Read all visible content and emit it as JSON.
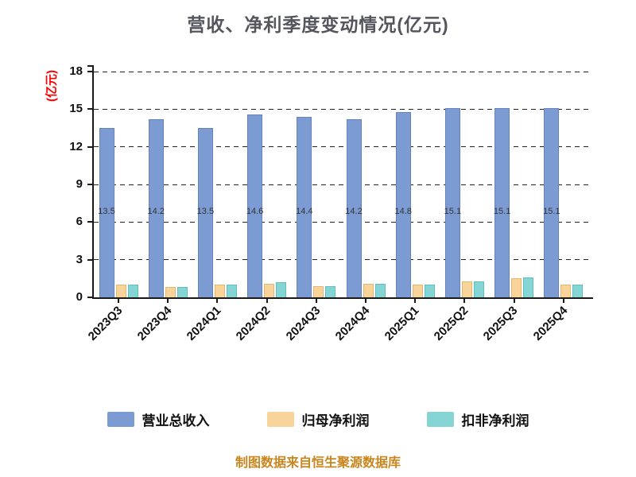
{
  "chart_data": {
    "type": "bar",
    "title": "营收、净利季度变动情况(亿元)",
    "ylabel": "(亿元)",
    "source_note": "制图数据来自恒生聚源数据库",
    "categories": [
      "2023Q3",
      "2023Q4",
      "2024Q1",
      "2024Q2",
      "2024Q3",
      "2024Q4",
      "2025Q1",
      "2025Q2",
      "2025Q3",
      "2025Q4"
    ],
    "series": [
      {
        "name": "营业总收入",
        "color": "#7D9BD3",
        "border": "#6383BE",
        "values": [
          13.5,
          14.2,
          13.5,
          14.6,
          14.4,
          14.2,
          14.8,
          15.1,
          15.1,
          15.1
        ],
        "labels": [
          "13.5",
          "14.2",
          "13.5",
          "14.6",
          "14.4",
          "14.2",
          "14.8",
          "15.1",
          "15.1",
          "15.1"
        ]
      },
      {
        "name": "归母净利润",
        "color": "#F8D49A",
        "border": "#E2B871",
        "values": [
          1.0,
          0.8,
          1.0,
          1.1,
          0.9,
          1.1,
          1.0,
          1.3,
          1.5,
          1.0
        ]
      },
      {
        "name": "扣非净利润",
        "color": "#85D5D5",
        "border": "#5FBFBF",
        "values": [
          1.0,
          0.8,
          1.0,
          1.2,
          0.9,
          1.1,
          1.0,
          1.3,
          1.6,
          1.0
        ]
      }
    ],
    "ylim": [
      0,
      18
    ],
    "yticks": [
      0,
      3,
      6,
      9,
      12,
      15,
      18
    ],
    "grid": "horizontal-dashed",
    "legend_position": "bottom",
    "bar_label_series": "营业总收入"
  },
  "colors": {
    "title": "#55555E",
    "axis": "#1A1A1A",
    "ylabel": "#FF0000",
    "source_note": "#C9861E",
    "bar_label": "#333333",
    "background": "#FFFFFF"
  }
}
